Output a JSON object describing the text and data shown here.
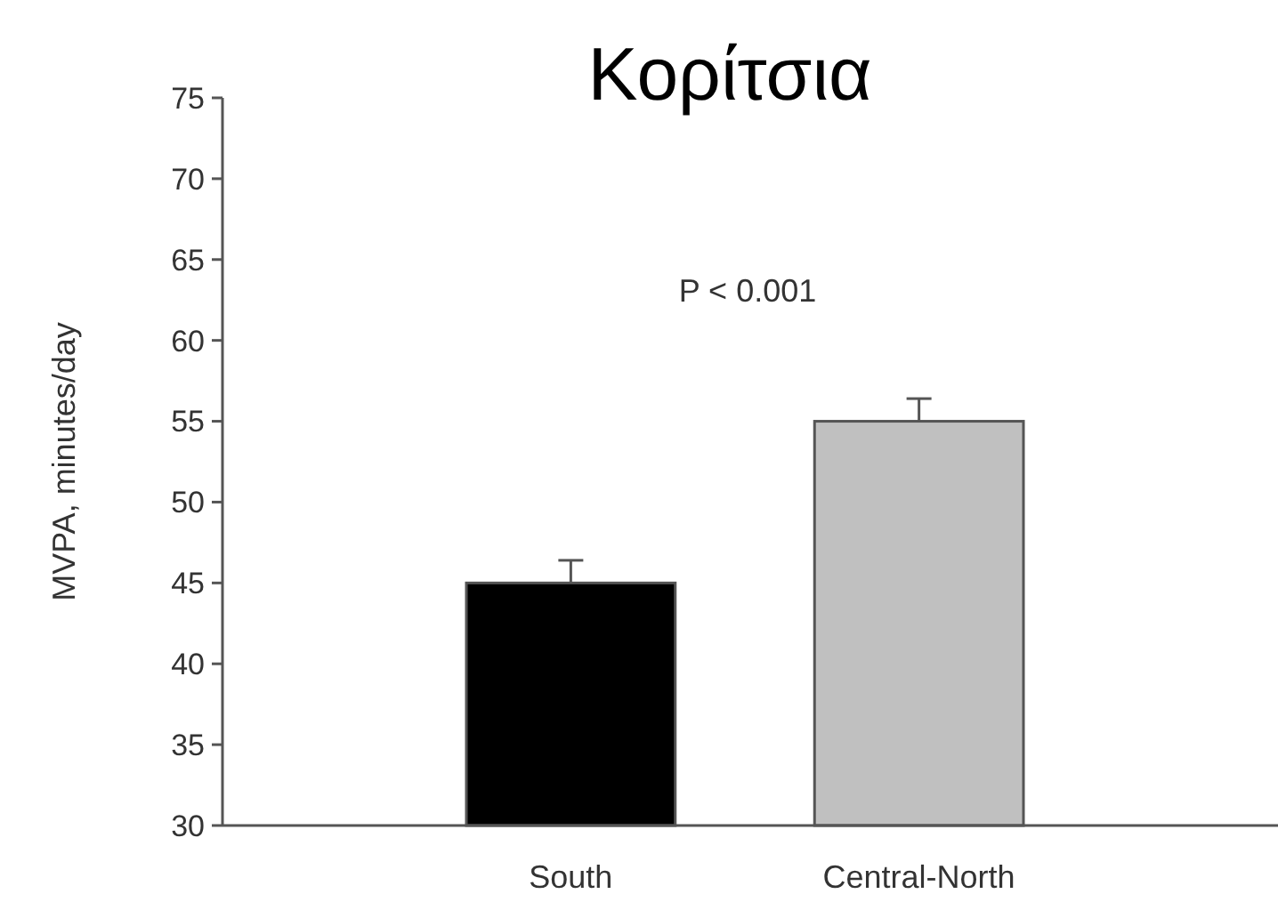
{
  "chart_data": {
    "type": "bar",
    "title": "Κορίτσια",
    "ylabel": "MVPA, minutes/day",
    "categories": [
      "South",
      "Central-North"
    ],
    "values": [
      45,
      55
    ],
    "colors": [
      "#000000",
      "#c0c0c0"
    ],
    "errors": [
      [
        45,
        46.4
      ],
      [
        55,
        56.4
      ]
    ],
    "ylim": [
      30,
      75
    ],
    "yticks": [
      30,
      35,
      40,
      45,
      50,
      55,
      60,
      65,
      70,
      75
    ],
    "annotations": [
      "P < 0.001"
    ],
    "grid": false
  }
}
